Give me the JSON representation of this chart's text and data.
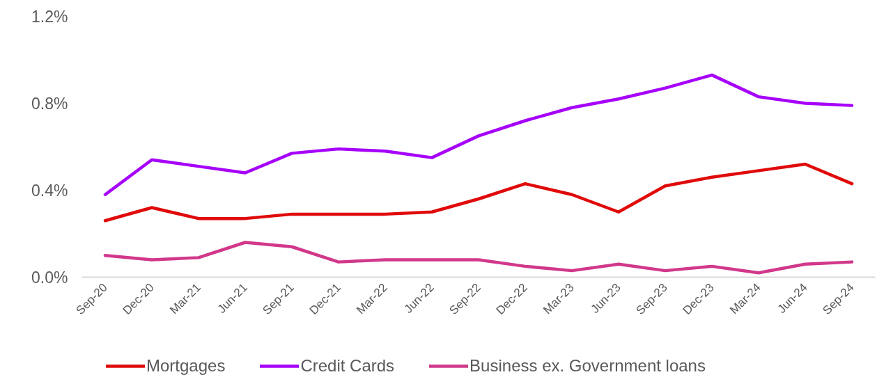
{
  "chart_data": {
    "type": "line",
    "categories": [
      "Sep-20",
      "Dec-20",
      "Mar-21",
      "Jun-21",
      "Sep-21",
      "Dec-21",
      "Mar-22",
      "Jun-22",
      "Sep-22",
      "Dec-22",
      "Mar-23",
      "Jun-23",
      "Sep-23",
      "Dec-23",
      "Mar-24",
      "Jun-24",
      "Sep-24"
    ],
    "ylim": [
      0,
      1.2
    ],
    "yticks": [
      {
        "value": 0,
        "label": "0.0%"
      },
      {
        "value": 0.4,
        "label": "0.4%"
      },
      {
        "value": 0.8,
        "label": "0.8%"
      },
      {
        "value": 1.2,
        "label": "1.2%"
      }
    ],
    "grid": false,
    "legend": "bottom",
    "line_style": "solid",
    "series": [
      {
        "name": "Mortgages",
        "color": "#e00a0a",
        "values": [
          0.26,
          0.32,
          0.27,
          0.27,
          0.29,
          0.29,
          0.29,
          0.3,
          0.36,
          0.43,
          0.38,
          0.3,
          0.42,
          0.46,
          0.49,
          0.52,
          0.43
        ]
      },
      {
        "name": "Credit Cards",
        "color": "#a600fa",
        "values": [
          0.38,
          0.54,
          0.51,
          0.48,
          0.57,
          0.59,
          0.58,
          0.55,
          0.65,
          0.72,
          0.78,
          0.82,
          0.87,
          0.93,
          0.83,
          0.8,
          0.79
        ]
      },
      {
        "name": "Business ex. Government loans",
        "color": "#d1388a",
        "values": [
          0.1,
          0.08,
          0.09,
          0.16,
          0.14,
          0.07,
          0.08,
          0.08,
          0.08,
          0.05,
          0.03,
          0.06,
          0.03,
          0.05,
          0.02,
          0.06,
          0.07
        ]
      }
    ]
  }
}
